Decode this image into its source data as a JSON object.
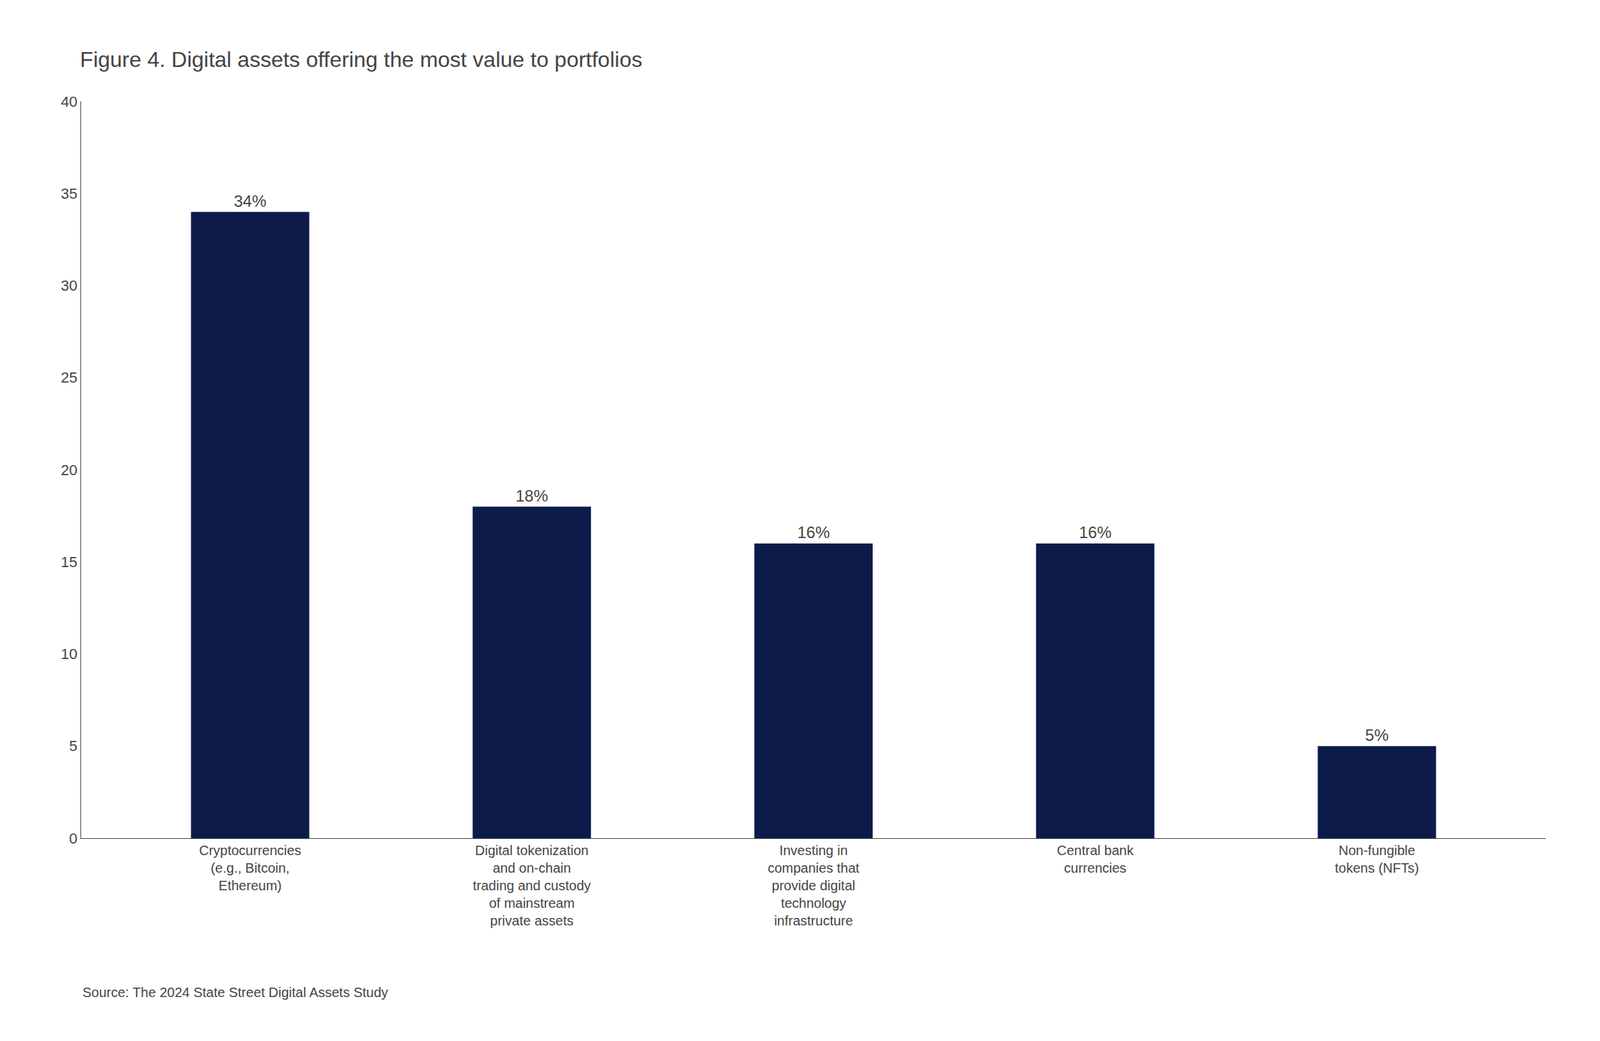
{
  "chart_data": {
    "type": "bar",
    "title": "Figure 4. Digital assets offering the most value to portfolios",
    "categories": [
      "Cryptocurrencies\n(e.g., Bitcoin,\nEthereum)",
      "Digital tokenization\nand on-chain\ntrading and custody\nof mainstream\nprivate assets",
      "Investing in\ncompanies that\nprovide digital\ntechnology\ninfrastructure",
      "Central bank\ncurrencies",
      "Non-fungible\ntokens (NFTs)"
    ],
    "values": [
      34,
      18,
      16,
      16,
      5
    ],
    "value_labels": [
      "34%",
      "18%",
      "16%",
      "16%",
      "5%"
    ],
    "data_labels": true,
    "color": "#0d1b4b",
    "ylim": [
      0,
      40
    ],
    "yticks": [
      0,
      5,
      10,
      15,
      20,
      25,
      30,
      35,
      40
    ],
    "grid": false,
    "annotations": [
      "Source: The 2024 State Street Digital Assets Study"
    ]
  }
}
